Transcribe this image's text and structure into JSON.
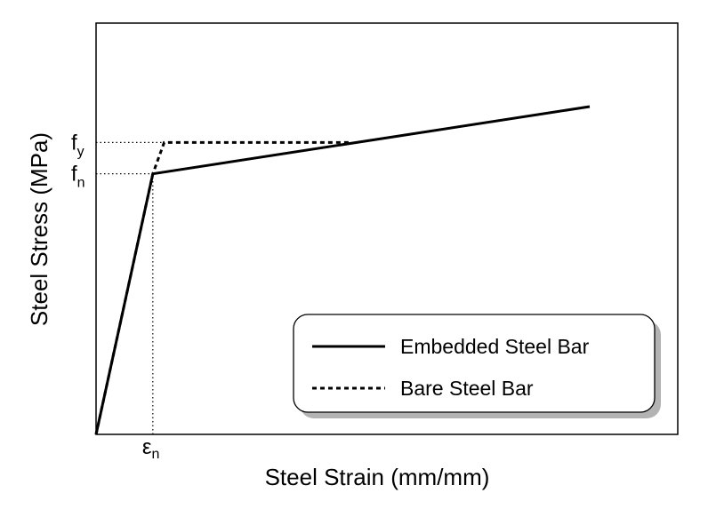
{
  "chart_data": {
    "type": "line",
    "title": "",
    "xlabel": "Steel Strain (mm/mm)",
    "ylabel": "Steel Stress (MPa)",
    "xlim": [
      0,
      1
    ],
    "ylim": [
      0,
      1
    ],
    "grid": false,
    "legend_position": "bottom-right",
    "x_tick_labels": [
      {
        "text": "ε",
        "subscript": "n",
        "x": 0.115
      }
    ],
    "y_tick_labels": [
      {
        "text": "f",
        "subscript": "y",
        "y": 0.708
      },
      {
        "text": "f",
        "subscript": "n",
        "y": 0.632
      }
    ],
    "reference_lines": [
      {
        "from": [
          0,
          0.708
        ],
        "to": [
          0.138,
          0.708
        ],
        "style": "dotted"
      },
      {
        "from": [
          0,
          0.632
        ],
        "to": [
          0.115,
          0.632
        ],
        "style": "dotted"
      },
      {
        "from": [
          0.115,
          0
        ],
        "to": [
          0.115,
          0.632
        ],
        "style": "dotted"
      }
    ],
    "series": [
      {
        "name": "Embedded Steel Bar",
        "style": "solid",
        "x": [
          0,
          0.115,
          1.0
        ],
        "y": [
          0,
          0.632,
          0.795
        ]
      },
      {
        "name": "Bare Steel Bar",
        "style": "dashed",
        "x": [
          0,
          0.115,
          0.138,
          0.518
        ],
        "y": [
          0,
          0.632,
          0.708,
          0.708
        ]
      }
    ],
    "colors": {
      "line": "#000000",
      "axis": "#000000"
    }
  }
}
